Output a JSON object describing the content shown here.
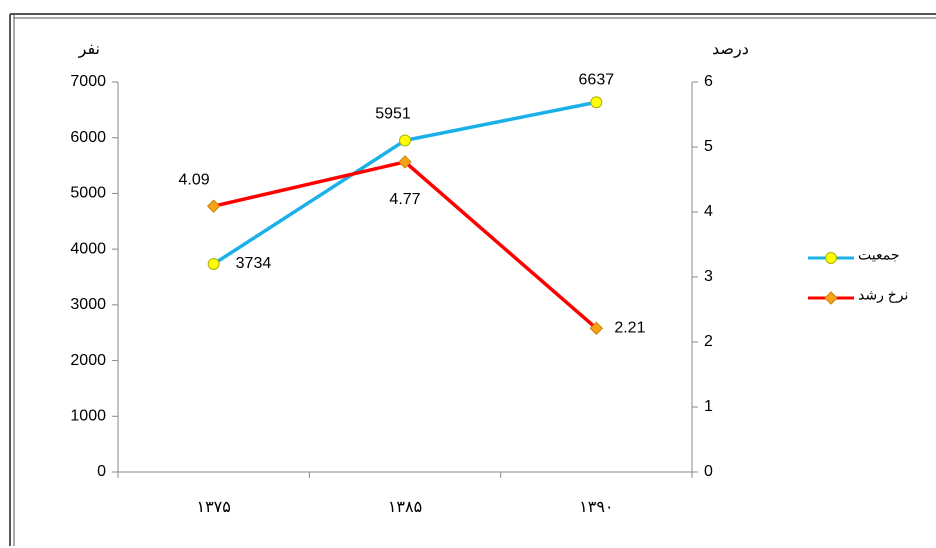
{
  "chart_data": {
    "type": "line",
    "categories": [
      "۱۳۷۵",
      "۱۳۸۵",
      "۱۳۹۰"
    ],
    "ylabel": "نفر",
    "y2label": "درصد",
    "ylim": [
      0,
      7000
    ],
    "yticks": [
      0,
      1000,
      2000,
      3000,
      4000,
      5000,
      6000,
      7000
    ],
    "y2lim": [
      0,
      6
    ],
    "y2ticks": [
      0,
      1,
      2,
      3,
      4,
      5,
      6
    ],
    "grid": false,
    "legend": "right",
    "series": [
      {
        "name": "جمعیت",
        "color": "#1ab0e8",
        "marker": "circle",
        "marker_color": "#ffff00",
        "values": [
          3734,
          5951,
          6637
        ]
      },
      {
        "name": "نرخ رشد",
        "color": "#ff0000",
        "marker": "diamond",
        "marker_color": "#f7a21b",
        "axis": "y2",
        "values": [
          4.09,
          4.77,
          2.21
        ]
      }
    ]
  }
}
